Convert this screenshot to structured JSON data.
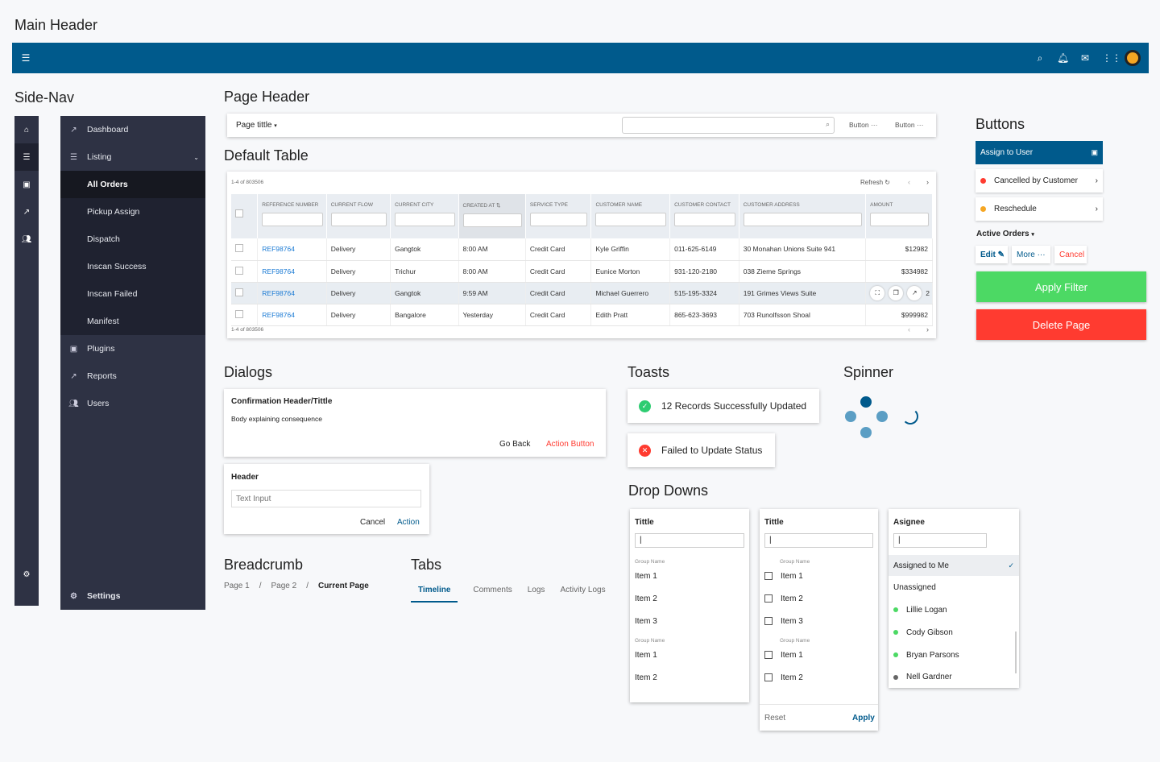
{
  "labels": {
    "main_header": "Main Header",
    "side_nav": "Side-Nav",
    "page_header": "Page Header",
    "default_table": "Default Table",
    "buttons": "Buttons",
    "dialogs": "Dialogs",
    "toasts": "Toasts",
    "spinner": "Spinner",
    "drop_downs": "Drop Downs",
    "breadcrumb": "Breadcrumb",
    "tabs": "Tabs"
  },
  "colors": {
    "header_bg": "#005a8c",
    "nav_bg": "#1f2230",
    "apply": "#4cd964",
    "delete": "#ff3b30",
    "link": "#1a7ad4"
  },
  "sidenav": {
    "items": [
      {
        "label": "Dashboard",
        "icon": "trend-icon"
      },
      {
        "label": "Listing",
        "icon": "list-icon"
      },
      {
        "label": "All Orders"
      },
      {
        "label": "Pickup Assign"
      },
      {
        "label": "Dispatch"
      },
      {
        "label": "Inscan Success"
      },
      {
        "label": "Inscan Failed"
      },
      {
        "label": "Manifest"
      },
      {
        "label": "Plugins",
        "icon": "box-icon"
      },
      {
        "label": "Reports",
        "icon": "trend-icon"
      },
      {
        "label": "Users",
        "icon": "users-icon"
      }
    ],
    "settings": "Settings"
  },
  "page_header": {
    "title": "Page tittle",
    "button1": "Button",
    "button2": "Button"
  },
  "table": {
    "count": "1-4 of 803506",
    "refresh": "Refresh",
    "columns": [
      "REFERENCE NUMBER",
      "CURRENT FLOW",
      "CURRENT CITY",
      "CREATED AT",
      "SERVICE TYPE",
      "CUSTOMER NAME",
      "CUSTOMER CONTACT",
      "CUSTOMER ADDRESS",
      "AMOUNT"
    ],
    "rows": [
      [
        "REF98764",
        "Delivery",
        "Gangtok",
        "8:00 AM",
        "Credit Card",
        "Kyle Griffin",
        "011-625-6149",
        "30 Monahan Unions Suite 941",
        "$12982"
      ],
      [
        "REF98764",
        "Delivery",
        "Trichur",
        "8:00 AM",
        "Credit Card",
        "Eunice Morton",
        "931-120-2180",
        "038 Zieme Springs",
        "$334982"
      ],
      [
        "REF98764",
        "Delivery",
        "Gangtok",
        "9:59 AM",
        "Credit Card",
        "Michael Guerrero",
        "515-195-3324",
        "191 Grimes Views Suite",
        "2"
      ],
      [
        "REF98764",
        "Delivery",
        "Bangalore",
        "Yesterday",
        "Credit Card",
        "Edith Pratt",
        "865-623-3693",
        "703 Runolfsson Shoal",
        "$999982"
      ]
    ]
  },
  "buttons": {
    "assign": "Assign to User",
    "cancelled": "Cancelled by Customer",
    "reschedule": "Reschedule",
    "active_orders": "Active Orders",
    "edit": "Edit",
    "more": "More",
    "cancel": "Cancel",
    "apply_filter": "Apply Filter",
    "delete_page": "Delete Page"
  },
  "dialog1": {
    "title": "Confirmation Header/Tittle",
    "body": "Body explaining consequence",
    "back": "Go Back",
    "action": "Action Button"
  },
  "dialog2": {
    "title": "Header",
    "placeholder": "Text Input",
    "cancel": "Cancel",
    "action": "Action"
  },
  "toasts": {
    "success": "12 Records Successfully Updated",
    "error": "Failed to Update Status"
  },
  "breadcrumb": {
    "p1": "Page 1",
    "p2": "Page 2",
    "current": "Current Page",
    "sep": "/"
  },
  "tabs": [
    "Timeline",
    "Comments",
    "Logs",
    "Activity Logs"
  ],
  "dropdown1": {
    "title": "Tittle",
    "group": "Group Name",
    "items": [
      "Item 1",
      "Item 2",
      "Item 3",
      "Item 1",
      "Item 2"
    ]
  },
  "dropdown2": {
    "title": "Tittle",
    "group": "Group Name",
    "items": [
      "Item 1",
      "Item 2",
      "Item 3",
      "Item 1",
      "Item 2"
    ],
    "reset": "Reset",
    "apply": "Apply"
  },
  "dropdown3": {
    "title": "Asignee",
    "items": [
      "Assigned to Me",
      "Unassigned",
      "Lillie Logan",
      "Cody Gibson",
      "Bryan Parsons",
      "Nell Gardner"
    ]
  }
}
